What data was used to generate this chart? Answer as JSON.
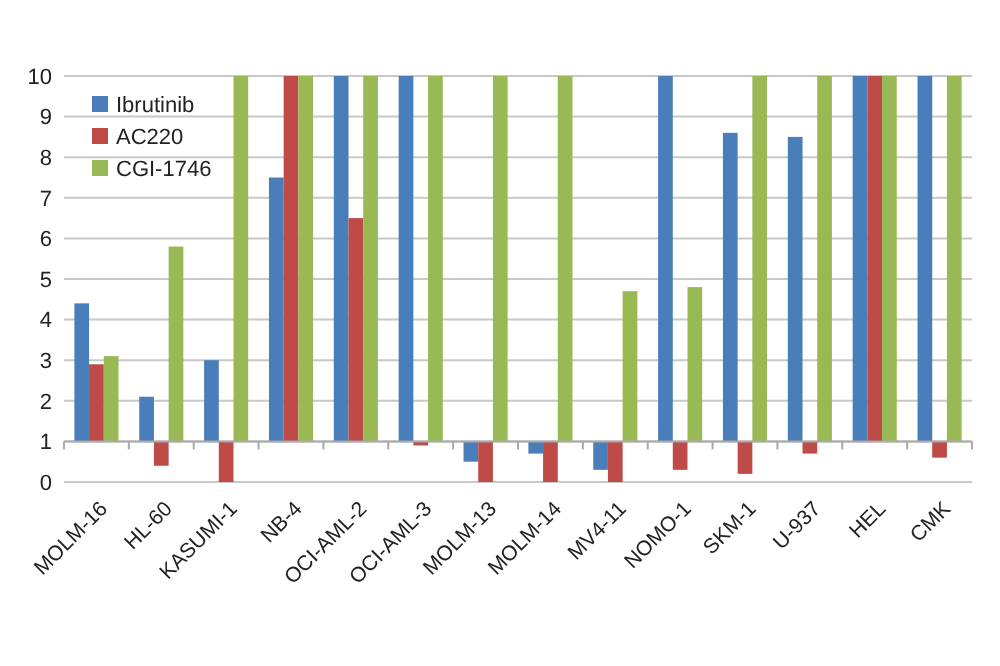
{
  "chart_data": {
    "type": "bar",
    "categories": [
      "MOLM-16",
      "HL-60",
      "KASUMI-1",
      "NB-4",
      "OCI-AML-2",
      "OCI-AML-3",
      "MOLM-13",
      "MOLM-14",
      "MV4-11",
      "NOMO-1",
      "SKM-1",
      "U-937",
      "HEL",
      "CMK"
    ],
    "series": [
      {
        "name": "Ibrutinib",
        "color": "#4a7ebb",
        "base": [
          1,
          1,
          1,
          1,
          1,
          1,
          1,
          1,
          1,
          1,
          1,
          1,
          1,
          1
        ],
        "values": [
          3.4,
          1.1,
          2,
          6.5,
          9,
          9,
          -0.5,
          -0.3,
          -0.7,
          9,
          7.6,
          7.5,
          9,
          9
        ]
      },
      {
        "name": "AC220",
        "color": "#be4b48",
        "base": [
          1,
          1,
          1,
          1,
          1,
          1,
          1,
          1,
          1,
          1,
          1,
          1,
          1,
          1
        ],
        "values": [
          1.9,
          -0.6,
          -1,
          9,
          5.5,
          -0.1,
          -1,
          -1,
          -1,
          -0.7,
          -0.8,
          -0.3,
          9,
          -0.4
        ]
      },
      {
        "name": "CGI-1746",
        "color": "#98b954",
        "base": [
          1,
          1,
          1,
          1,
          1,
          1,
          1,
          1,
          1,
          1,
          1,
          1,
          1,
          1
        ],
        "values": [
          2.1,
          4.8,
          9,
          9,
          9,
          9,
          9,
          9,
          3.7,
          3.8,
          9,
          9,
          9,
          9
        ]
      }
    ],
    "ref_lines": [
      {
        "axis": "y",
        "value": 1,
        "color": "#aaaaaa"
      }
    ],
    "ylim": [
      0,
      10
    ],
    "yticks": [
      0,
      1,
      2,
      3,
      4,
      5,
      6,
      7,
      8,
      9,
      10
    ],
    "grid": "y",
    "legend": "top left"
  }
}
